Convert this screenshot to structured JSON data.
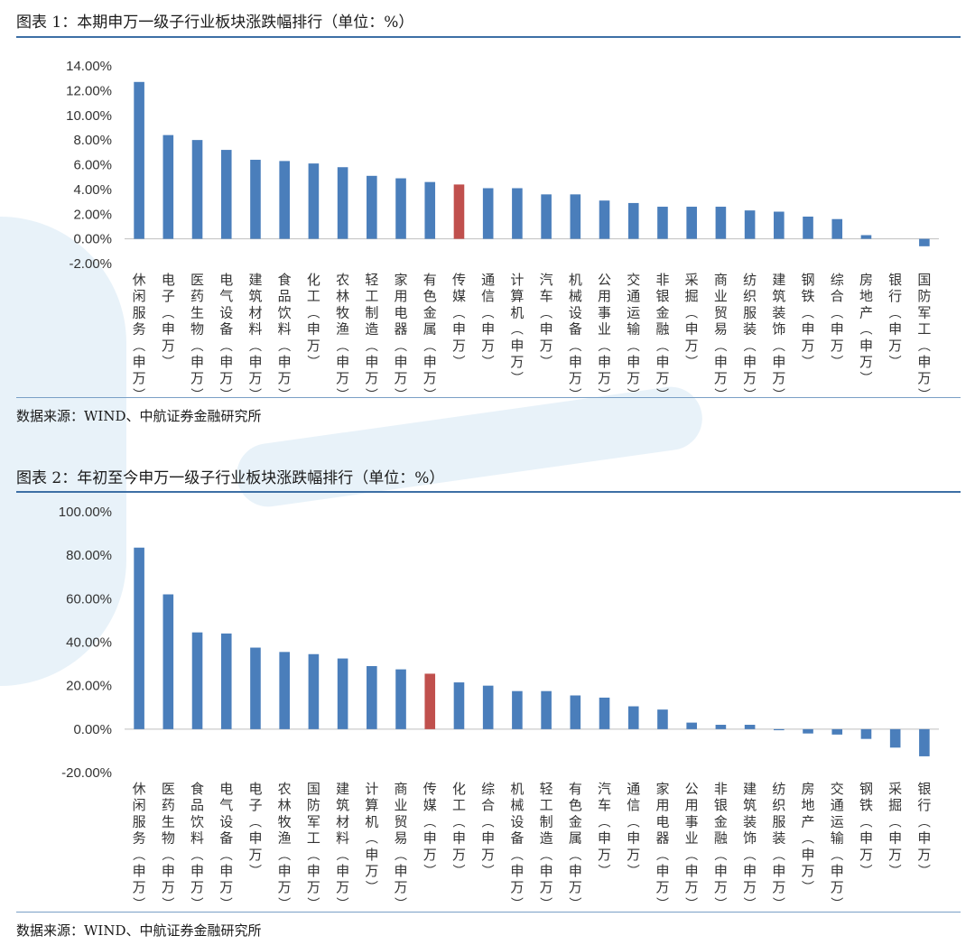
{
  "figure1": {
    "title": "图表 1：本期申万一级子行业板块涨跌幅排行（单位：%）",
    "source": "数据来源：WIND、中航证券金融研究所",
    "chart_data": {
      "type": "bar",
      "categories": [
        "休闲服务(申万)",
        "电子(申万)",
        "医药生物(申万)",
        "电气设备(申万)",
        "建筑材料(申万)",
        "食品饮料(申万)",
        "化工(申万)",
        "农林牧渔(申万)",
        "轻工制造(申万)",
        "家用电器(申万)",
        "有色金属(申万)",
        "传媒(申万)",
        "通信(申万)",
        "计算机(申万)",
        "汽车(申万)",
        "机械设备(申万)",
        "公用事业(申万)",
        "交通运输(申万)",
        "非银金融(申万)",
        "采掘(申万)",
        "商业贸易(申万)",
        "纺织服装(申万)",
        "建筑装饰(申万)",
        "钢铁(申万)",
        "综合(申万)",
        "房地产(申万)",
        "银行(申万)",
        "国防军工(申万)"
      ],
      "values": [
        12.7,
        8.4,
        8.0,
        7.2,
        6.4,
        6.3,
        6.1,
        5.8,
        5.1,
        4.9,
        4.6,
        4.4,
        4.1,
        4.1,
        3.6,
        3.6,
        3.1,
        2.9,
        2.6,
        2.6,
        2.6,
        2.3,
        2.2,
        1.8,
        1.6,
        0.3,
        0.0,
        -0.6
      ],
      "highlight_index": 11,
      "yticks": [
        "14.00%",
        "12.00%",
        "10.00%",
        "8.00%",
        "6.00%",
        "4.00%",
        "2.00%",
        "0.00%",
        "-2.00%"
      ],
      "ylim": [
        -2,
        14
      ],
      "bar_color": "#4a7ebb",
      "highlight_color": "#c0504d"
    }
  },
  "figure2": {
    "title": "图表 2：年初至今申万一级子行业板块涨跌幅排行（单位：%）",
    "source": "数据来源：WIND、中航证券金融研究所",
    "chart_data": {
      "type": "bar",
      "categories": [
        "休闲服务(申万)",
        "医药生物(申万)",
        "食品饮料(申万)",
        "电气设备(申万)",
        "电子(申万)",
        "农林牧渔(申万)",
        "国防军工(申万)",
        "建筑材料(申万)",
        "计算机(申万)",
        "商业贸易(申万)",
        "传媒(申万)",
        "化工(申万)",
        "综合(申万)",
        "机械设备(申万)",
        "轻工制造(申万)",
        "有色金属(申万)",
        "汽车(申万)",
        "通信(申万)",
        "家用电器(申万)",
        "公用事业(申万)",
        "非银金融(申万)",
        "建筑装饰(申万)",
        "纺织服装(申万)",
        "房地产(申万)",
        "交通运输(申万)",
        "钢铁(申万)",
        "采掘(申万)",
        "银行(申万)"
      ],
      "values": [
        83.5,
        62.0,
        44.5,
        44.0,
        37.5,
        35.5,
        34.5,
        32.5,
        29.0,
        27.5,
        25.5,
        21.5,
        20.0,
        17.5,
        17.5,
        15.5,
        14.5,
        10.5,
        9.0,
        3.0,
        2.0,
        2.0,
        -0.5,
        -2.0,
        -2.5,
        -4.5,
        -8.5,
        -12.5
      ],
      "highlight_index": 10,
      "yticks": [
        "100.00%",
        "80.00%",
        "60.00%",
        "40.00%",
        "20.00%",
        "0.00%",
        "-20.00%"
      ],
      "ylim": [
        -20,
        100
      ],
      "bar_color": "#4a7ebb",
      "highlight_color": "#c0504d"
    }
  }
}
